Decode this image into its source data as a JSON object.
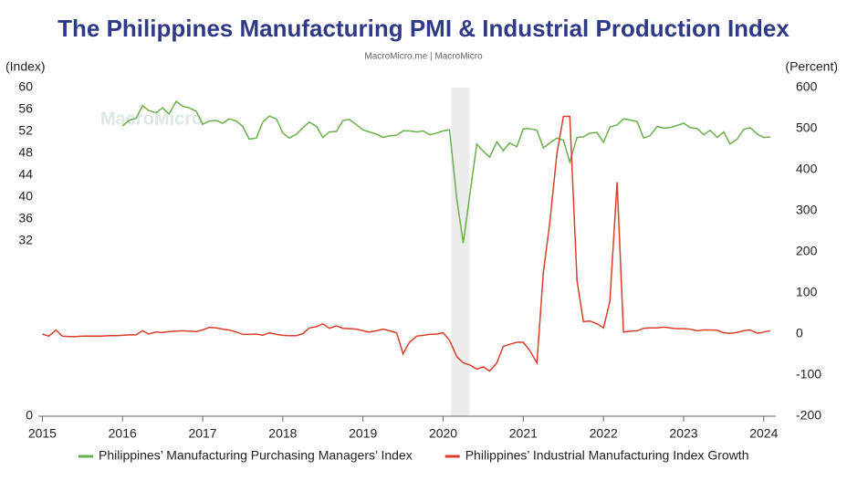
{
  "chart_data": {
    "type": "line",
    "title": "The Philippines Manufacturing PMI & Industrial Production Index",
    "subtitle": "MacroMicro.me | MacroMicro",
    "watermark": "MacroMicro",
    "y_label": "(Index)",
    "y2_label": "(Percent)",
    "xlim": [
      2014.95,
      2024.15
    ],
    "xticks": [
      2015,
      2016,
      2017,
      2018,
      2019,
      2020,
      2021,
      2022,
      2023,
      2024
    ],
    "ylim": [
      0,
      60
    ],
    "yticks": [
      0,
      32,
      36,
      40,
      44,
      48,
      52,
      56,
      60
    ],
    "y2lim": [
      -200,
      600
    ],
    "y2ticks": [
      -200,
      -100,
      0,
      100,
      200,
      300,
      400,
      500,
      600
    ],
    "bands": [
      [
        2020.1,
        2020.33
      ]
    ],
    "band_color": "#ececec",
    "legend": "bottom",
    "series": [
      {
        "name": "Philippines’ Manufacturing Purchasing Managers’ Index",
        "color": "#6ab04c",
        "x": [
          2016.0,
          2016.08,
          2016.17,
          2016.25,
          2016.33,
          2016.42,
          2016.5,
          2016.58,
          2016.67,
          2016.75,
          2016.83,
          2016.92,
          2017.0,
          2017.08,
          2017.17,
          2017.25,
          2017.33,
          2017.42,
          2017.5,
          2017.58,
          2017.67,
          2017.75,
          2017.83,
          2017.92,
          2018.0,
          2018.08,
          2018.17,
          2018.25,
          2018.33,
          2018.42,
          2018.5,
          2018.58,
          2018.67,
          2018.75,
          2018.83,
          2018.92,
          2019.0,
          2019.08,
          2019.17,
          2019.25,
          2019.33,
          2019.42,
          2019.5,
          2019.58,
          2019.67,
          2019.75,
          2019.83,
          2019.92,
          2020.0,
          2020.08,
          2020.17,
          2020.25,
          2020.33,
          2020.42,
          2020.5,
          2020.58,
          2020.67,
          2020.75,
          2020.83,
          2020.92,
          2021.0,
          2021.08,
          2021.17,
          2021.25,
          2021.33,
          2021.42,
          2021.5,
          2021.58,
          2021.67,
          2021.75,
          2021.83,
          2021.92,
          2022.0,
          2022.08,
          2022.17,
          2022.25,
          2022.33,
          2022.42,
          2022.5,
          2022.58,
          2022.67,
          2022.75,
          2022.83,
          2022.92,
          2023.0,
          2023.08,
          2023.17,
          2023.25,
          2023.33,
          2023.42,
          2023.5,
          2023.58,
          2023.67,
          2023.75,
          2023.83,
          2023.92,
          2024.0,
          2024.08
        ],
        "values": [
          53.0,
          54.0,
          54.4,
          56.7,
          55.8,
          55.4,
          56.3,
          55.2,
          57.5,
          56.6,
          56.3,
          55.7,
          53.3,
          53.9,
          54.0,
          53.5,
          54.3,
          53.9,
          52.9,
          50.6,
          50.8,
          53.7,
          54.8,
          54.3,
          51.7,
          50.8,
          51.5,
          52.7,
          53.7,
          52.9,
          50.9,
          51.9,
          52.0,
          54.0,
          54.2,
          53.2,
          52.3,
          51.9,
          51.5,
          50.9,
          51.2,
          51.3,
          52.1,
          52.1,
          51.9,
          52.1,
          51.4,
          51.7,
          52.1,
          52.3,
          39.7,
          31.6,
          40.1,
          49.7,
          48.4,
          47.3,
          50.1,
          48.5,
          49.9,
          49.2,
          52.5,
          52.5,
          52.2,
          49.0,
          49.9,
          50.8,
          50.4,
          46.4,
          50.9,
          51.0,
          51.7,
          51.8,
          50.0,
          52.8,
          53.2,
          54.3,
          54.1,
          53.8,
          50.8,
          51.2,
          52.9,
          52.6,
          52.7,
          53.1,
          53.5,
          52.7,
          52.5,
          51.4,
          52.2,
          50.9,
          51.9,
          49.7,
          50.6,
          52.4,
          52.7,
          51.5,
          50.9,
          51.0
        ]
      },
      {
        "name": "Philippines’ Industrial Manufacturing Index Growth",
        "color": "#d9402b",
        "axis": "y2",
        "x": [
          2015.0,
          2015.08,
          2015.17,
          2015.25,
          2015.33,
          2015.42,
          2015.5,
          2015.58,
          2015.67,
          2015.75,
          2015.83,
          2015.92,
          2016.0,
          2016.08,
          2016.17,
          2016.25,
          2016.33,
          2016.42,
          2016.5,
          2016.58,
          2016.67,
          2016.75,
          2016.83,
          2016.92,
          2017.0,
          2017.08,
          2017.17,
          2017.25,
          2017.33,
          2017.42,
          2017.5,
          2017.58,
          2017.67,
          2017.75,
          2017.83,
          2017.92,
          2018.0,
          2018.08,
          2018.17,
          2018.25,
          2018.33,
          2018.42,
          2018.5,
          2018.58,
          2018.67,
          2018.75,
          2018.83,
          2018.92,
          2019.0,
          2019.08,
          2019.17,
          2019.25,
          2019.33,
          2019.42,
          2019.5,
          2019.58,
          2019.67,
          2019.75,
          2019.83,
          2019.92,
          2020.0,
          2020.08,
          2020.17,
          2020.25,
          2020.33,
          2020.42,
          2020.5,
          2020.58,
          2020.67,
          2020.75,
          2020.83,
          2020.92,
          2021.0,
          2021.08,
          2021.17,
          2021.25,
          2021.33,
          2021.42,
          2021.5,
          2021.58,
          2021.67,
          2021.75,
          2021.83,
          2021.92,
          2022.0,
          2022.08,
          2022.17,
          2022.25,
          2022.33,
          2022.42,
          2022.5,
          2022.58,
          2022.67,
          2022.75,
          2022.83,
          2022.92,
          2023.0,
          2023.08,
          2023.17,
          2023.25,
          2023.33,
          2023.42,
          2023.5,
          2023.58,
          2023.67,
          2023.75,
          2023.83,
          2023.92,
          2024.0,
          2024.08
        ],
        "values": [
          0,
          -5,
          10,
          -5,
          -6,
          -6,
          -5,
          -5,
          -5,
          -5,
          -4,
          -4,
          -3,
          -2,
          -2,
          8,
          0,
          5,
          4,
          6,
          7,
          8,
          7,
          6,
          10,
          16,
          15,
          12,
          10,
          5,
          -1,
          -1,
          0,
          -3,
          3,
          -1,
          -3,
          -4,
          -4,
          1,
          15,
          18,
          25,
          14,
          20,
          14,
          13,
          12,
          8,
          5,
          8,
          12,
          8,
          3,
          -48,
          -20,
          -5,
          -3,
          -1,
          0,
          3,
          -15,
          -55,
          -70,
          -75,
          -85,
          -80,
          -90,
          -70,
          -30,
          -25,
          -20,
          -20,
          -40,
          -70,
          150,
          270,
          440,
          530,
          530,
          130,
          30,
          32,
          25,
          15,
          80,
          370,
          5,
          7,
          8,
          14,
          15,
          15,
          17,
          15,
          13,
          13,
          12,
          8,
          10,
          10,
          9,
          3,
          2,
          4,
          8,
          10,
          2,
          5,
          8
        ]
      }
    ]
  }
}
